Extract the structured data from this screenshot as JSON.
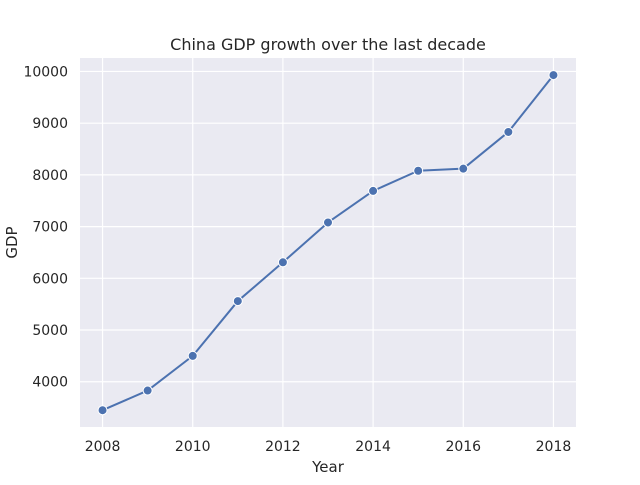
{
  "chart_data": {
    "type": "line",
    "title": "China GDP growth over the last decade",
    "xlabel": "Year",
    "ylabel": "GDP",
    "x": [
      2008,
      2009,
      2010,
      2011,
      2012,
      2013,
      2014,
      2015,
      2016,
      2017,
      2018
    ],
    "series": [
      {
        "values": [
          3450,
          3830,
          4500,
          5560,
          6310,
          7080,
          7690,
          8080,
          8120,
          8830,
          9930
        ]
      }
    ],
    "xticks": [
      "2008",
      "2010",
      "2012",
      "2014",
      "2016",
      "2018"
    ],
    "yticks": [
      "4000",
      "5000",
      "6000",
      "7000",
      "8000",
      "9000",
      "10000"
    ],
    "xlim": [
      2007.5,
      2018.5
    ],
    "ylim": [
      3125,
      10260
    ],
    "grid": true,
    "colors": {
      "background": "#eaeaf2",
      "grid": "#ffffff",
      "line": "#4c72b0",
      "marker_edge": "#ffffff"
    }
  }
}
